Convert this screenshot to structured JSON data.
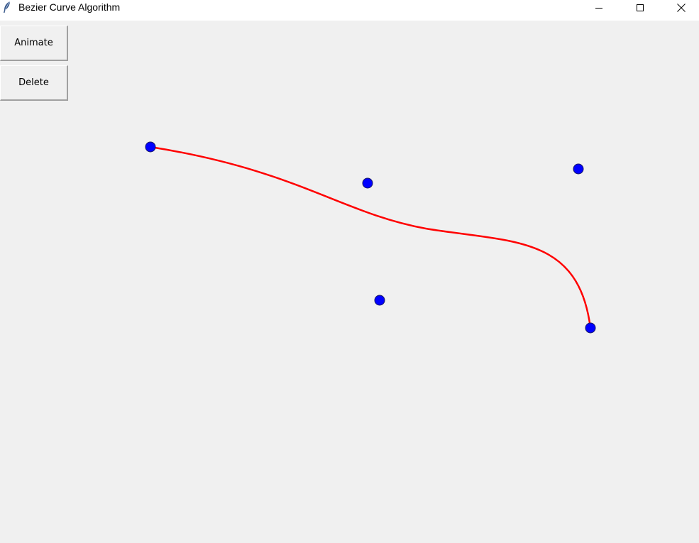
{
  "window": {
    "title": "Bezier Curve Algorithm"
  },
  "toolbar": {
    "animate_label": "Animate",
    "delete_label": "Delete"
  },
  "canvas": {
    "curve_color": "#ff0000",
    "point_fill": "#0000ff",
    "point_outline": "#1a1a66",
    "background": "#f0f0f0"
  },
  "icons": {
    "app": "feather-icon",
    "minimize": "minimize-icon",
    "maximize": "maximize-icon",
    "close": "close-icon"
  }
}
